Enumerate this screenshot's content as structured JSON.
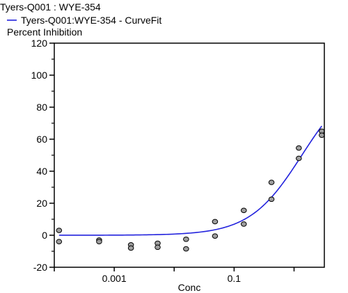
{
  "chart_data": {
    "type": "scatter",
    "title": "Tyers-Q001  :  WYE-354",
    "legend": {
      "placement": "top-left",
      "entries": [
        {
          "name": "Tyers-Q001:WYE-354 - CurveFit",
          "color": "#2222dd",
          "style": "line"
        }
      ]
    },
    "ylabel": "Percent Inhibition",
    "xlabel": "Conc",
    "x_scale": "log",
    "xlim": [
      0.0001,
      3.2
    ],
    "ylim": [
      -20,
      120
    ],
    "x_ticks": [
      {
        "value": 0.001,
        "label": "0.001"
      },
      {
        "value": 0.1,
        "label": "0.1"
      }
    ],
    "y_ticks": [
      {
        "value": -20,
        "label": "-20"
      },
      {
        "value": 0,
        "label": "0"
      },
      {
        "value": 20,
        "label": "20"
      },
      {
        "value": 40,
        "label": "40"
      },
      {
        "value": 60,
        "label": "60"
      },
      {
        "value": 80,
        "label": "80"
      },
      {
        "value": 100,
        "label": "100"
      },
      {
        "value": 120,
        "label": "120"
      }
    ],
    "grid": false,
    "series": [
      {
        "kind": "points",
        "color": "#9e9e9e",
        "points": [
          {
            "x": 0.00012,
            "y": 3
          },
          {
            "x": 0.00012,
            "y": -4
          },
          {
            "x": 0.00056,
            "y": -3
          },
          {
            "x": 0.00056,
            "y": -4
          },
          {
            "x": 0.0019,
            "y": -6
          },
          {
            "x": 0.0019,
            "y": -8
          },
          {
            "x": 0.0053,
            "y": -5
          },
          {
            "x": 0.0053,
            "y": -7.5
          },
          {
            "x": 0.0158,
            "y": -2.5
          },
          {
            "x": 0.0158,
            "y": -8.5
          },
          {
            "x": 0.048,
            "y": 8.5
          },
          {
            "x": 0.048,
            "y": -0.5
          },
          {
            "x": 0.145,
            "y": 15.5
          },
          {
            "x": 0.145,
            "y": 7
          },
          {
            "x": 0.42,
            "y": 33
          },
          {
            "x": 0.42,
            "y": 22.5
          },
          {
            "x": 1.2,
            "y": 54.5
          },
          {
            "x": 1.2,
            "y": 48
          },
          {
            "x": 2.9,
            "y": 65
          },
          {
            "x": 2.9,
            "y": 62.5
          }
        ]
      },
      {
        "kind": "curve",
        "name": "Tyers-Q001:WYE-354 - CurveFit",
        "color": "#2222dd",
        "bottom": 0,
        "top": 100,
        "ec50": 1.35,
        "hill": 1.0,
        "x_range": [
          0.00012,
          2.9
        ]
      }
    ]
  }
}
